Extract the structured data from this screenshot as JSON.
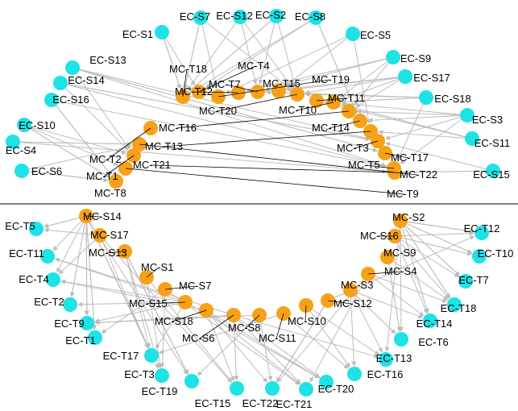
{
  "colors": {
    "ec_node": "#1de2e6",
    "mc_node": "#f6a117",
    "edge": "#bcbcbc",
    "divider": "#000000"
  },
  "panels": [
    {
      "id": "top",
      "outer_nodes": [
        "EC-S1",
        "EC-S7",
        "EC-S12",
        "EC-S2",
        "EC-S8",
        "EC-S5",
        "EC-S9",
        "EC-S17",
        "EC-S18",
        "EC-S3",
        "EC-S11",
        "EC-S15",
        "EC-S13",
        "EC-S14",
        "EC-S16",
        "EC-S10",
        "EC-S4",
        "EC-S6"
      ],
      "inner_nodes": [
        "MC-T18",
        "MC-T4",
        "MC-T19",
        "MC-T12",
        "MC-T7",
        "MC-T15",
        "MC-T20",
        "MC-T11",
        "MC-T10",
        "MC-T16",
        "MC-T14",
        "MC-T13",
        "MC-T3",
        "MC-T17",
        "MC-T5",
        "MC-T21",
        "MC-T2",
        "MC-T22",
        "MC-T1",
        "MC-T9",
        "MC-T8"
      ]
    },
    {
      "id": "bottom",
      "outer_nodes": [
        "EC-T5",
        "EC-T11",
        "EC-T4",
        "EC-T2",
        "EC-T9",
        "EC-T1",
        "EC-T17",
        "EC-T3",
        "EC-T19",
        "EC-T15",
        "EC-T22",
        "EC-T21",
        "EC-T20",
        "EC-T16",
        "EC-T13",
        "EC-T6",
        "EC-T14",
        "EC-T18",
        "EC-T7",
        "EC-T10",
        "EC-T12"
      ],
      "inner_nodes": [
        "MC-S14",
        "MC-S17",
        "MC-S13",
        "MC-S1",
        "MC-S7",
        "MC-S15",
        "MC-S18",
        "MC-S6",
        "MC-S8",
        "MC-S11",
        "MC-S10",
        "MC-S12",
        "MC-S3",
        "MC-S4",
        "MC-S9",
        "MC-S16",
        "MC-S2"
      ]
    }
  ]
}
